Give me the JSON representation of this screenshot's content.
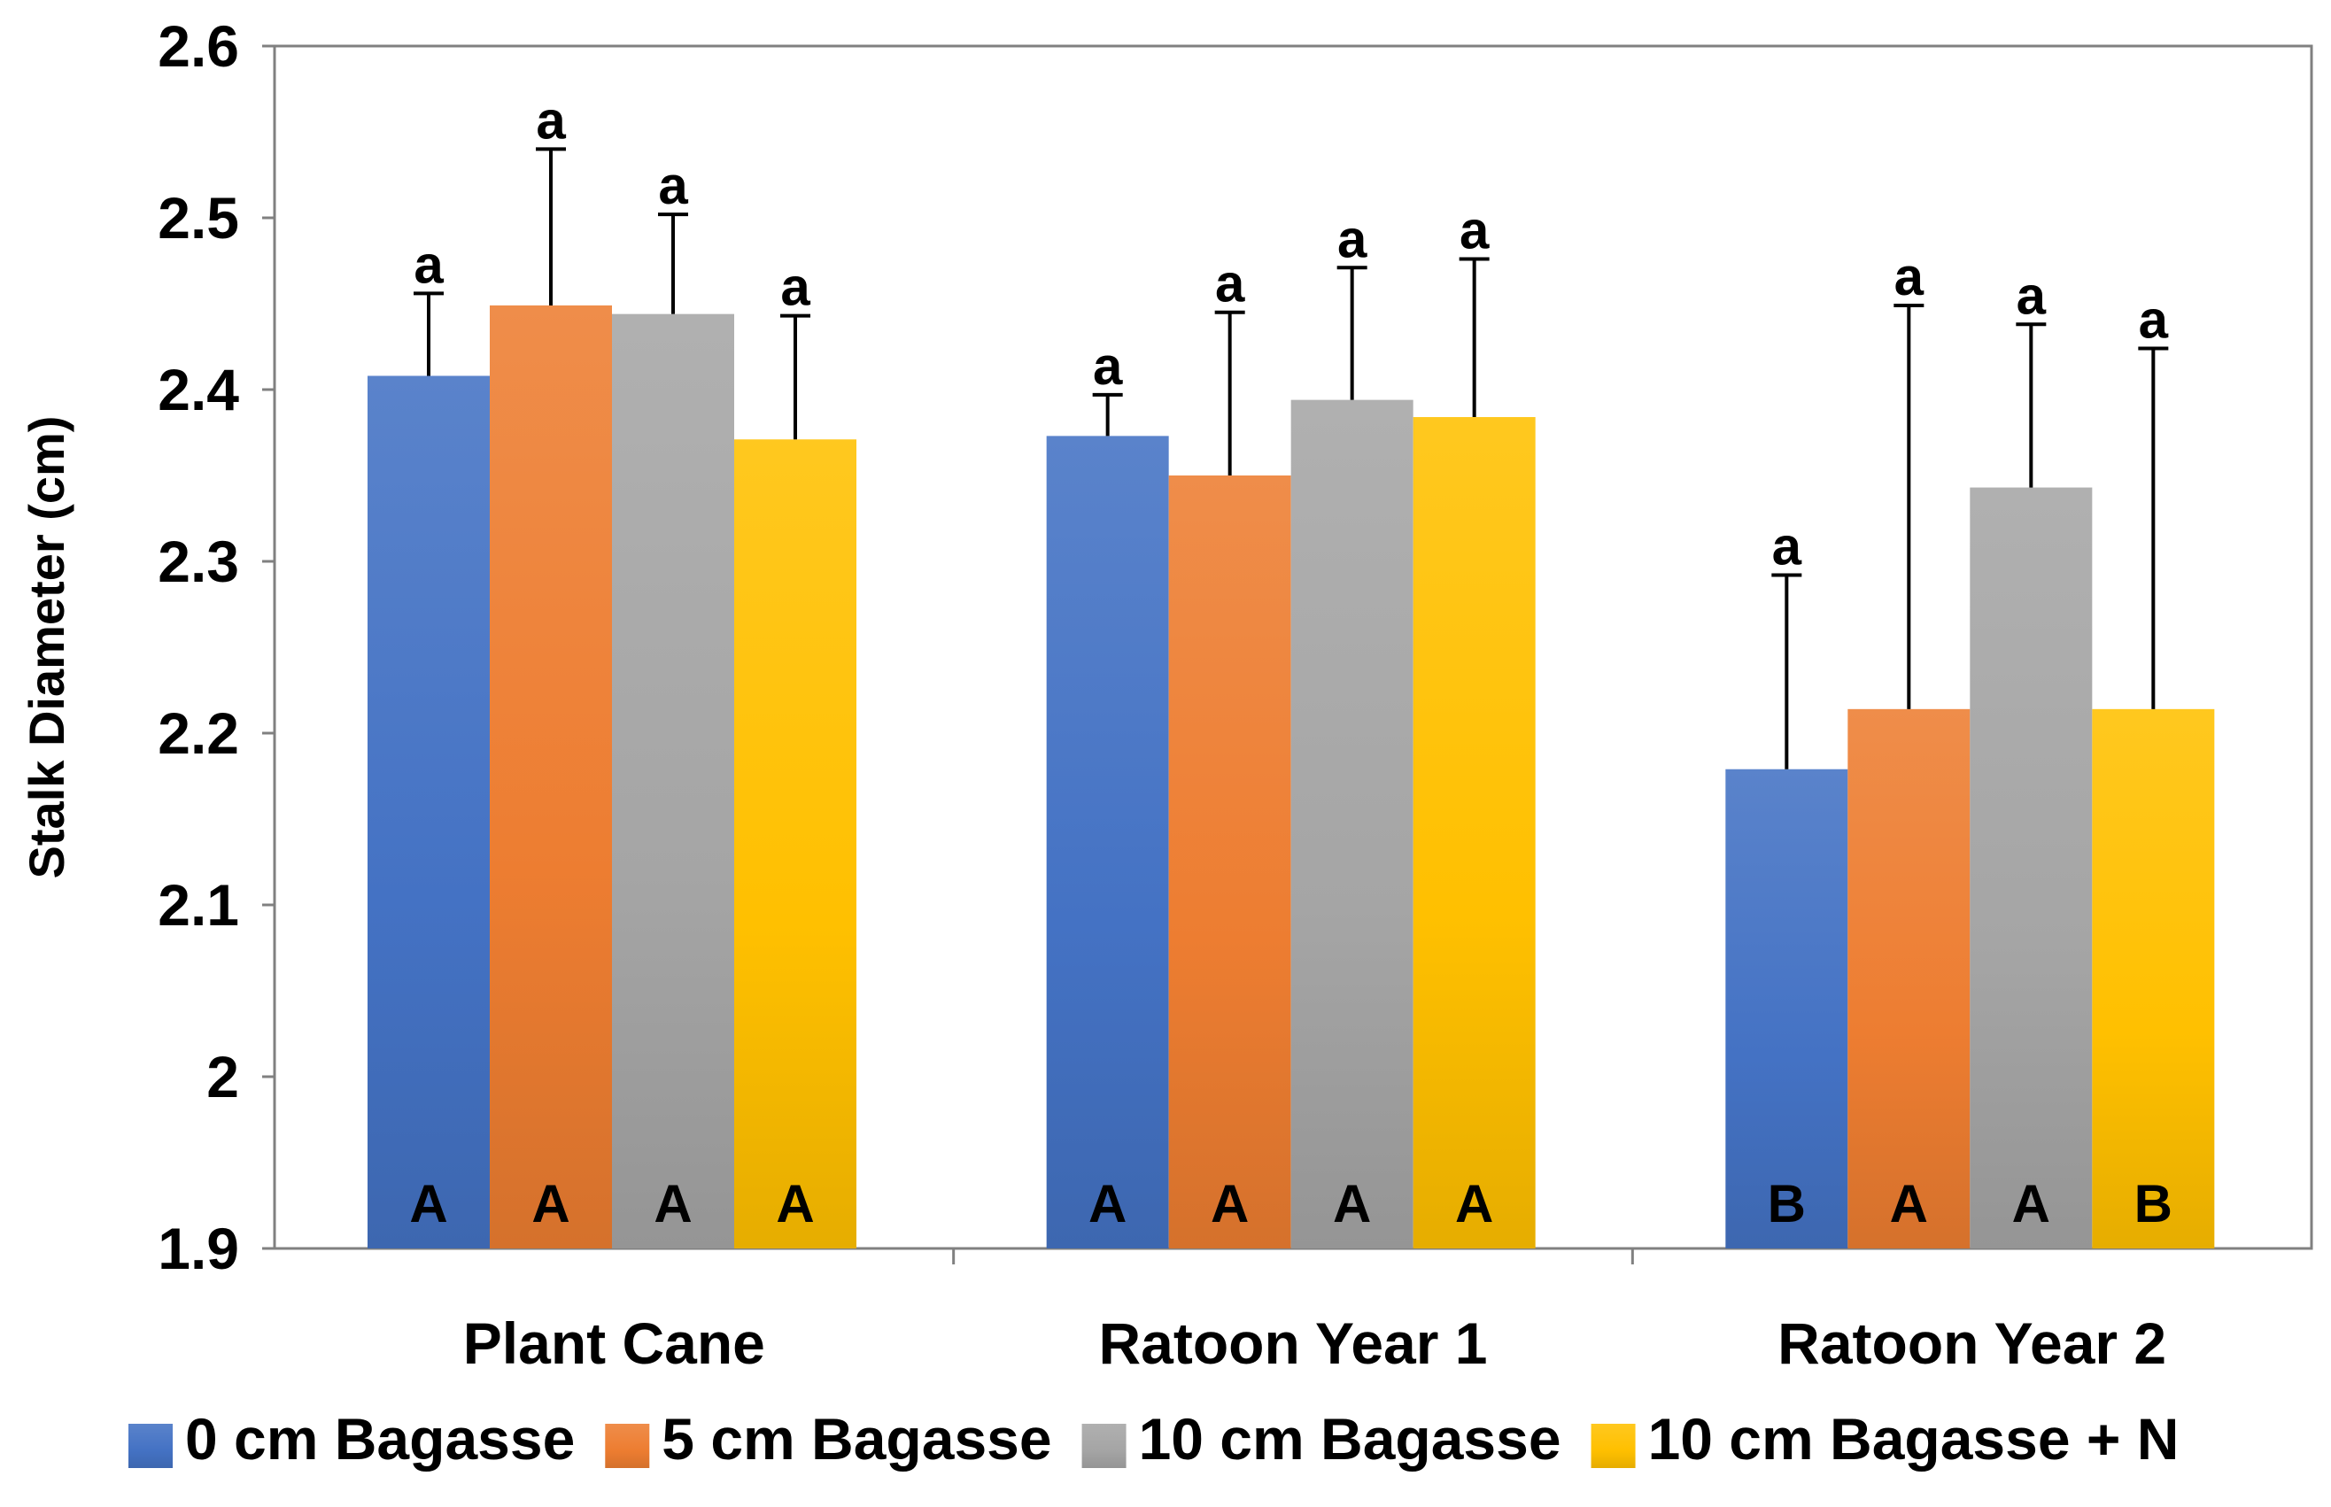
{
  "chart_data": {
    "type": "bar",
    "title": "",
    "xlabel": "",
    "ylabel": "Stalk Diameter (cm)",
    "ylim": [
      1.9,
      2.6
    ],
    "yticks": [
      1.9,
      2,
      2.1,
      2.2,
      2.3,
      2.4,
      2.5,
      2.6
    ],
    "ytick_labels": [
      "1.9",
      "2",
      "2.1",
      "2.2",
      "2.3",
      "2.4",
      "2.5",
      "2.6"
    ],
    "grid": false,
    "legend_position": "bottom",
    "categories": [
      "Plant Cane",
      "Ratoon Year 1",
      "Ratoon Year 2"
    ],
    "series": [
      {
        "name": "0 cm Bagasse",
        "color": "#4472C4",
        "values": [
          2.408,
          2.373,
          2.179
        ],
        "errors": [
          0.048,
          0.024,
          0.113
        ],
        "sig_lower": [
          "a",
          "a",
          "a"
        ],
        "sig_upper": [
          "A",
          "A",
          "B"
        ]
      },
      {
        "name": "5 cm Bagasse",
        "color": "#ED7D31",
        "values": [
          2.449,
          2.35,
          2.214
        ],
        "errors": [
          0.091,
          0.095,
          0.235
        ],
        "sig_lower": [
          "a",
          "a",
          "a"
        ],
        "sig_upper": [
          "A",
          "A",
          "A"
        ]
      },
      {
        "name": "10 cm Bagasse",
        "color": "#A5A5A5",
        "values": [
          2.444,
          2.394,
          2.343
        ],
        "errors": [
          0.058,
          0.077,
          0.095
        ],
        "sig_lower": [
          "a",
          "a",
          "a"
        ],
        "sig_upper": [
          "A",
          "A",
          "A"
        ]
      },
      {
        "name": "10 cm Bagasse + N",
        "color": "#FFC000",
        "values": [
          2.371,
          2.384,
          2.214
        ],
        "errors": [
          0.072,
          0.092,
          0.21
        ],
        "sig_lower": [
          "a",
          "a",
          "a"
        ],
        "sig_upper": [
          "A",
          "A",
          "B"
        ]
      }
    ]
  }
}
